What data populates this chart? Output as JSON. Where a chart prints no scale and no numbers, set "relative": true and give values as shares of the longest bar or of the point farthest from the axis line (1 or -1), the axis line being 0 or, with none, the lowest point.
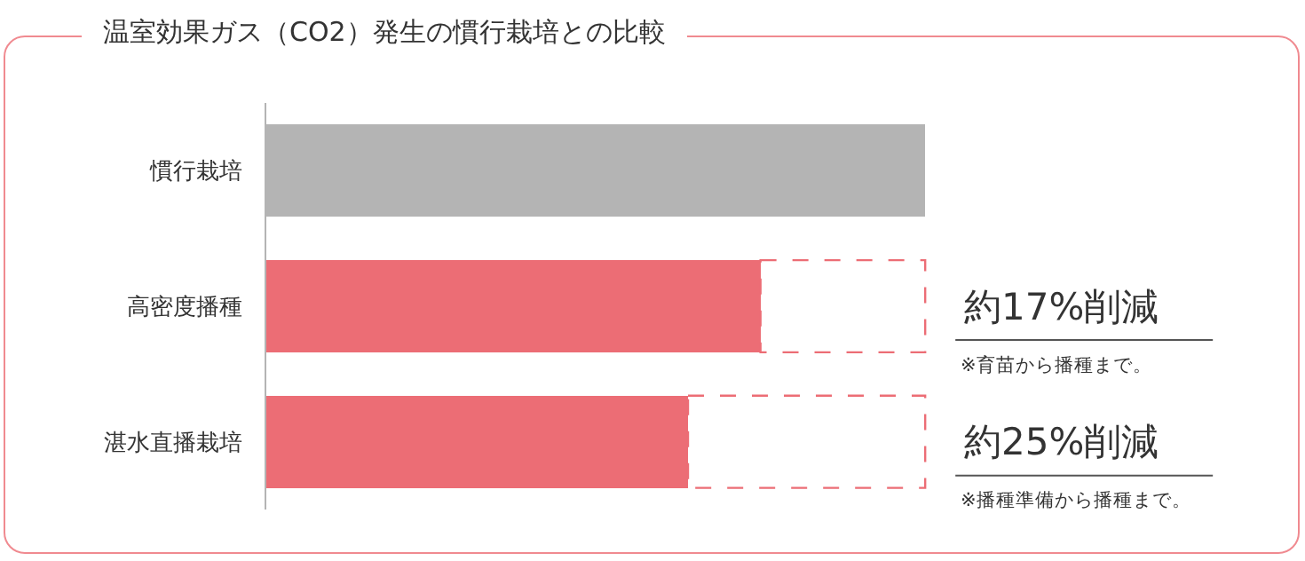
{
  "chart_data": {
    "type": "bar",
    "orientation": "horizontal",
    "relative": true,
    "stacked": true,
    "title": "温室効果ガス（CO2）発生の慣行栽培との比較",
    "categories": [
      "慣行栽培",
      "高密度播種",
      "湛水直播栽培"
    ],
    "series": [
      {
        "values": [
          1,
          0.75,
          0.64
        ],
        "colors": [
          "#b4b4b4",
          "#ec6d75",
          "#ec6d75"
        ]
      },
      {
        "values": [
          null,
          0.25,
          0.36
        ],
        "color": "#ec6d75",
        "line_style": "dashed"
      }
    ],
    "annotations": [
      {
        "text": "約17%削減",
        "x": 1,
        "y": "高密度播種"
      },
      "※育苗から播種まで。",
      {
        "text": "約25%削減",
        "x": 1,
        "y": "湛水直播栽培"
      },
      "※播種準備から播種まで。"
    ]
  }
}
